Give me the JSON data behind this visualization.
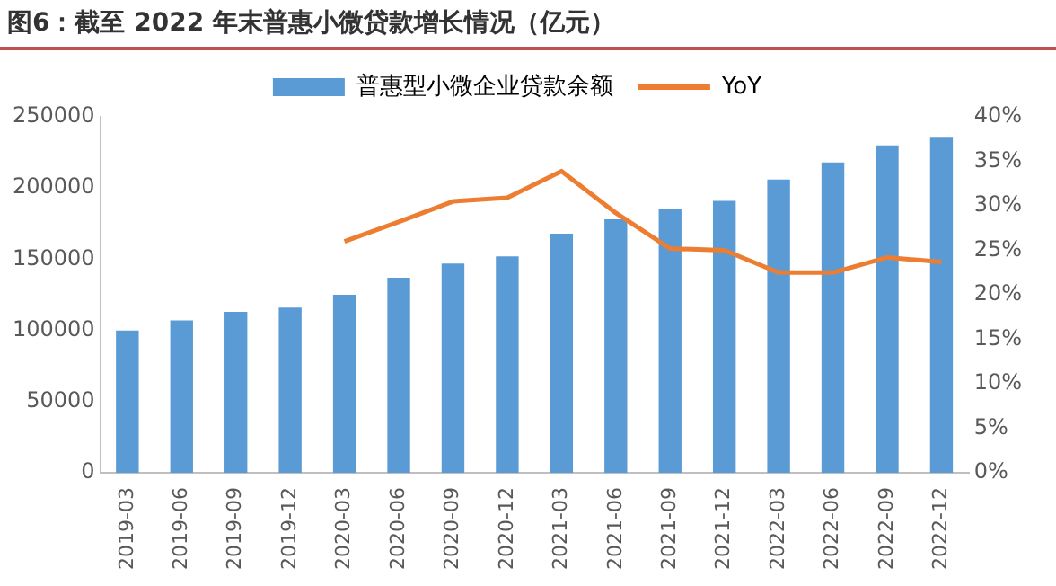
{
  "chart_data": {
    "type": "bar",
    "title": "图6：截至 2022 年末普惠小微贷款增长情况（亿元）",
    "categories": [
      "2019-03",
      "2019-06",
      "2019-09",
      "2019-12",
      "2020-03",
      "2020-06",
      "2020-09",
      "2020-12",
      "2021-03",
      "2021-06",
      "2021-09",
      "2021-12",
      "2022-03",
      "2022-06",
      "2022-09",
      "2022-12"
    ],
    "series": [
      {
        "name": "普惠型小微企业贷款余额",
        "color": "#5b9bd5",
        "values": [
          100000,
          107000,
          113000,
          116000,
          125000,
          137000,
          147000,
          152000,
          168000,
          178000,
          185000,
          191000,
          206000,
          218000,
          230000,
          236000
        ]
      },
      {
        "name": "YoY",
        "type": "line",
        "axis": "y2",
        "color": "#ed7d31",
        "values": [
          null,
          null,
          null,
          null,
          26.0,
          28.2,
          30.5,
          30.9,
          33.9,
          29.2,
          25.2,
          25.0,
          22.5,
          22.5,
          24.2,
          23.7
        ]
      }
    ],
    "ylim": [
      0,
      250000
    ],
    "yticks": [
      0,
      50000,
      100000,
      150000,
      200000,
      250000
    ],
    "y2lim": [
      0,
      40
    ],
    "y2ticks": [
      {
        "value": 0,
        "label": "0%"
      },
      {
        "value": 5,
        "label": "5%"
      },
      {
        "value": 10,
        "label": "10%"
      },
      {
        "value": 15,
        "label": "15%"
      },
      {
        "value": 20,
        "label": "20%"
      },
      {
        "value": 25,
        "label": "25%"
      },
      {
        "value": 30,
        "label": "30%"
      },
      {
        "value": 35,
        "label": "35%"
      },
      {
        "value": 40,
        "label": "40%"
      }
    ],
    "grid": false,
    "legend": "top",
    "marker": "none"
  }
}
